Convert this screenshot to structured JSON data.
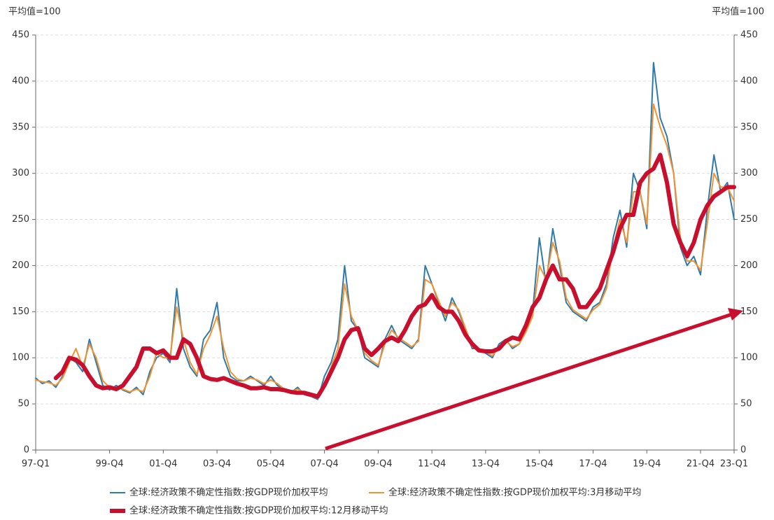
{
  "chart_data": {
    "type": "line",
    "y_label": "平均值=100",
    "y2_label": "平均值=100",
    "categories": [
      "97-Q1",
      null,
      null,
      null,
      null,
      null,
      null,
      null,
      null,
      null,
      null,
      "99-Q4",
      null,
      null,
      null,
      null,
      null,
      null,
      null,
      "01-Q4",
      null,
      null,
      null,
      null,
      null,
      null,
      null,
      "03-Q4",
      null,
      null,
      null,
      null,
      null,
      null,
      null,
      "05-Q4",
      null,
      null,
      null,
      null,
      null,
      null,
      null,
      "07-Q4",
      null,
      null,
      null,
      null,
      null,
      null,
      null,
      "09-Q4",
      null,
      null,
      null,
      null,
      null,
      null,
      null,
      "11-Q4",
      null,
      null,
      null,
      null,
      null,
      null,
      null,
      "13-Q4",
      null,
      null,
      null,
      null,
      null,
      null,
      null,
      "15-Q4",
      null,
      null,
      null,
      null,
      null,
      null,
      null,
      "17-Q4",
      null,
      null,
      null,
      null,
      null,
      null,
      null,
      "19-Q4",
      null,
      null,
      null,
      null,
      null,
      null,
      null,
      "21-Q4",
      null,
      null,
      null,
      null,
      "23-Q1"
    ],
    "series": [
      {
        "name": "全球:经济政策不确定性指数:按GDP现价加权平均",
        "color": "#2e7bab",
        "width": 2,
        "values": [
          78,
          72,
          75,
          68,
          80,
          100,
          95,
          85,
          120,
          95,
          70,
          65,
          70,
          65,
          62,
          68,
          60,
          85,
          100,
          105,
          95,
          175,
          110,
          90,
          80,
          120,
          130,
          160,
          100,
          80,
          75,
          75,
          80,
          75,
          70,
          80,
          70,
          65,
          62,
          68,
          60,
          58,
          55,
          80,
          95,
          120,
          200,
          140,
          130,
          100,
          95,
          90,
          120,
          135,
          120,
          115,
          110,
          120,
          200,
          180,
          160,
          140,
          165,
          150,
          130,
          110,
          110,
          105,
          100,
          115,
          120,
          110,
          115,
          130,
          150,
          230,
          180,
          240,
          200,
          160,
          150,
          145,
          140,
          155,
          160,
          180,
          230,
          260,
          220,
          300,
          280,
          240,
          420,
          360,
          340,
          300,
          220,
          200,
          210,
          190,
          260,
          320,
          280,
          290,
          250
        ]
      },
      {
        "name": "全球:经济政策不确定性指数:按GDP现价加权平均:3月移动平均",
        "color": "#f5922f",
        "width": 2,
        "values": [
          76,
          74,
          73,
          70,
          78,
          95,
          110,
          90,
          115,
          100,
          75,
          68,
          68,
          66,
          63,
          66,
          63,
          80,
          105,
          100,
          100,
          155,
          120,
          95,
          82,
          110,
          125,
          145,
          110,
          85,
          77,
          75,
          78,
          76,
          72,
          76,
          72,
          66,
          63,
          66,
          62,
          58,
          57,
          72,
          90,
          110,
          180,
          145,
          130,
          105,
          97,
          92,
          115,
          130,
          122,
          117,
          112,
          118,
          185,
          180,
          162,
          145,
          160,
          152,
          132,
          112,
          110,
          107,
          102,
          112,
          118,
          112,
          115,
          128,
          145,
          200,
          185,
          225,
          205,
          165,
          152,
          147,
          142,
          152,
          158,
          175,
          220,
          250,
          225,
          280,
          280,
          245,
          375,
          350,
          330,
          300,
          230,
          205,
          205,
          195,
          245,
          300,
          285,
          285,
          270
        ]
      },
      {
        "name": "全球:经济政策不确定性指数:按GDP现价加权平均:12月移动平均",
        "color": "#c8102e",
        "width": 6,
        "values": [
          null,
          null,
          null,
          78,
          85,
          100,
          98,
          92,
          80,
          70,
          67,
          68,
          66,
          70,
          80,
          90,
          110,
          110,
          105,
          108,
          100,
          100,
          120,
          115,
          100,
          80,
          77,
          76,
          78,
          75,
          72,
          70,
          67,
          67,
          68,
          66,
          66,
          65,
          63,
          62,
          62,
          60,
          58,
          70,
          85,
          100,
          120,
          130,
          132,
          110,
          103,
          110,
          118,
          122,
          118,
          130,
          145,
          155,
          158,
          168,
          155,
          150,
          150,
          140,
          125,
          115,
          108,
          107,
          107,
          110,
          118,
          122,
          120,
          135,
          155,
          165,
          185,
          200,
          185,
          185,
          175,
          155,
          155,
          165,
          175,
          195,
          215,
          240,
          255,
          255,
          290,
          300,
          305,
          320,
          290,
          245,
          225,
          210,
          225,
          250,
          265,
          275,
          280,
          285,
          285
        ]
      }
    ],
    "ylim": [
      0,
      450
    ],
    "yticks": [
      0,
      50,
      100,
      150,
      200,
      250,
      300,
      350,
      400,
      450
    ],
    "y2lim": [
      0,
      450
    ],
    "y2ticks": [
      0,
      50,
      100,
      150,
      200,
      250,
      300,
      350,
      400,
      450
    ],
    "grid": true
  }
}
